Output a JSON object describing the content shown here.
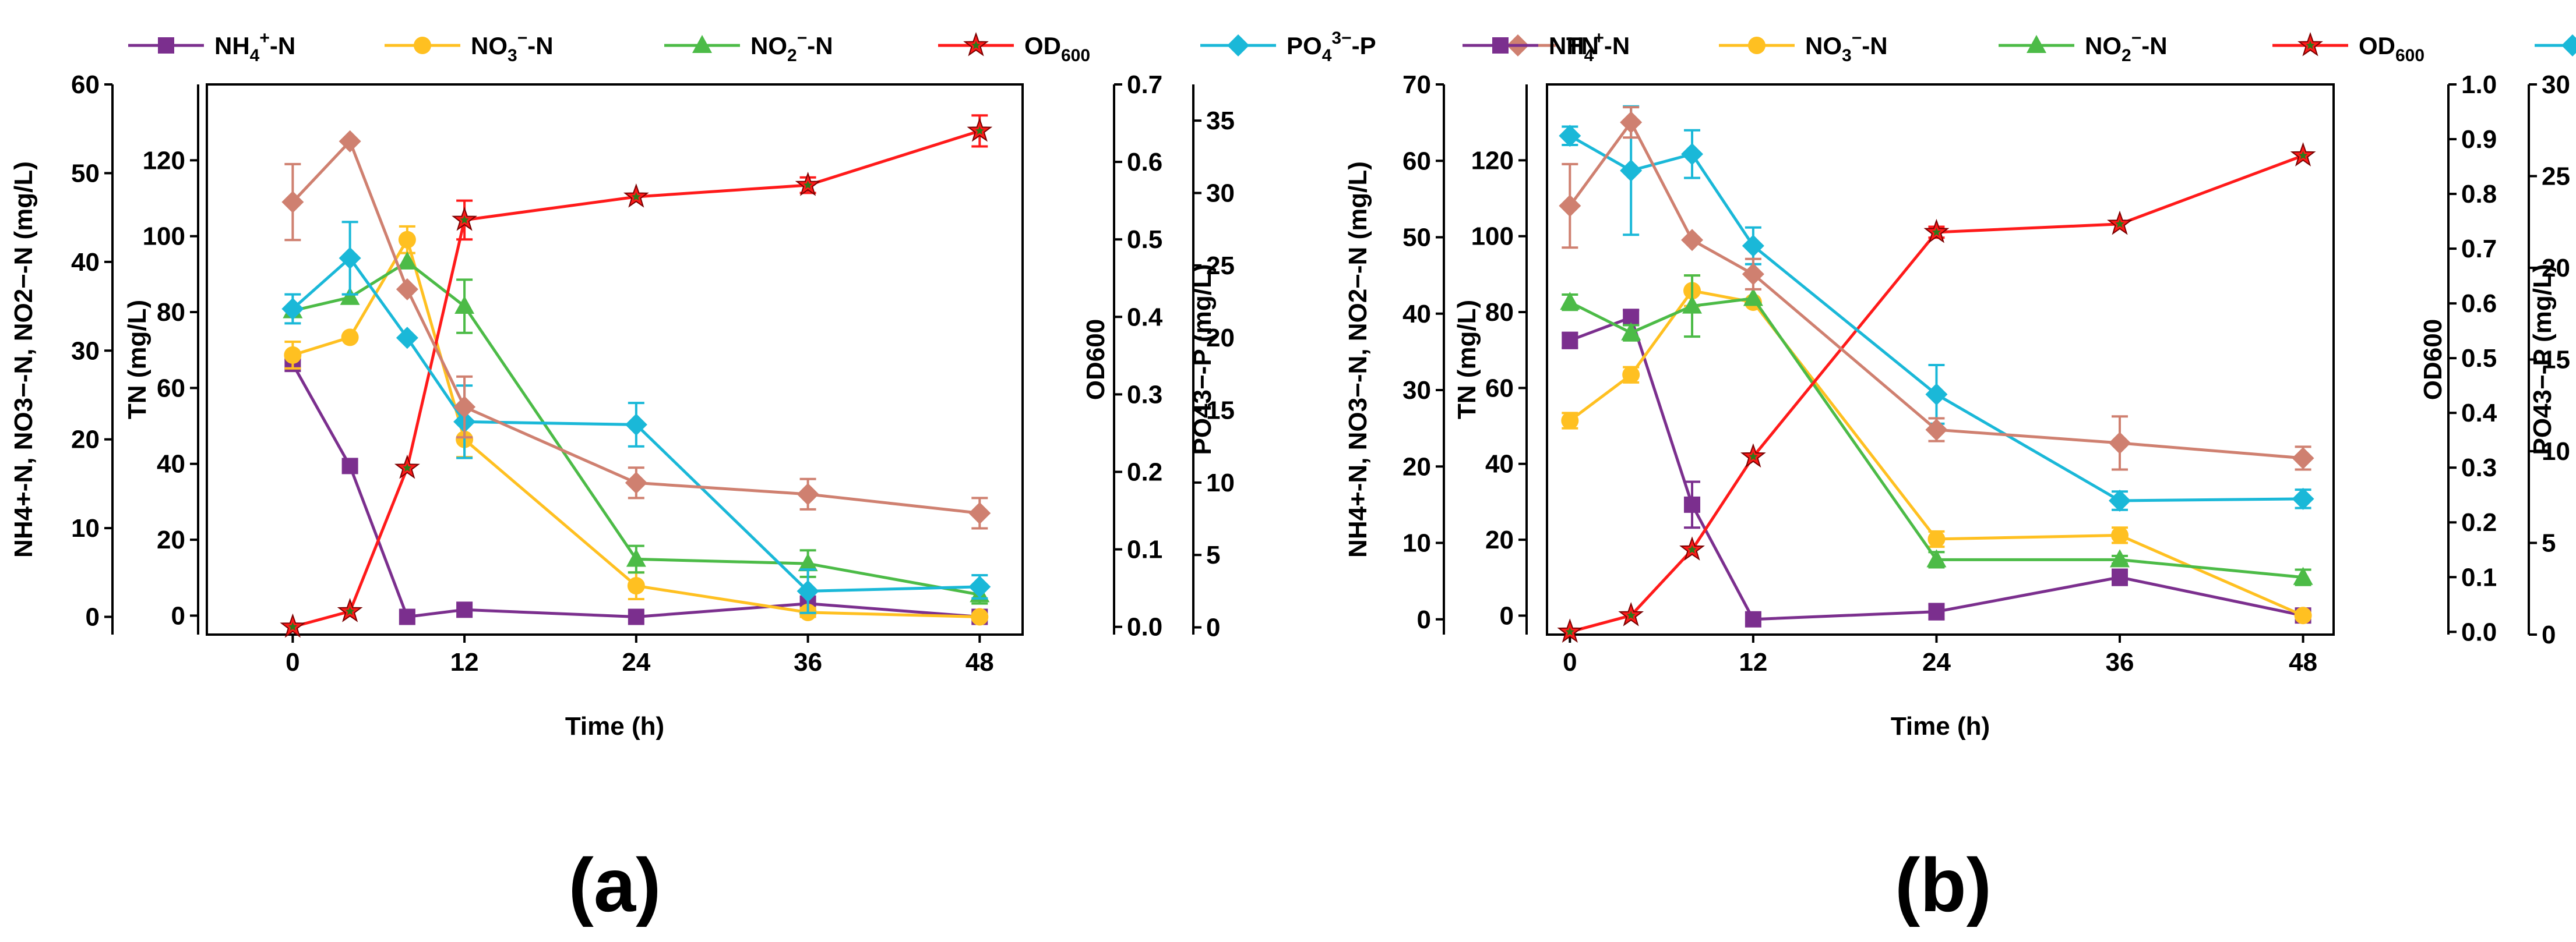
{
  "legend": [
    {
      "key": "nh4",
      "base": "NH",
      "sub": "4",
      "sup": "+",
      "rest": "-N",
      "color": "#7b2f8e",
      "marker": "square"
    },
    {
      "key": "no3",
      "base": "NO",
      "sub": "3",
      "sup": "−",
      "rest": "-N",
      "color": "#ffc021",
      "marker": "circle"
    },
    {
      "key": "no2",
      "base": "NO",
      "sub": "2",
      "sup": "−",
      "rest": "-N",
      "color": "#4cbb47",
      "marker": "triangle"
    },
    {
      "key": "od",
      "base": "OD",
      "sub": "600",
      "sup": "",
      "rest": "",
      "color": "#ff1a1a",
      "marker": "star"
    },
    {
      "key": "po4",
      "base": "PO",
      "sub": "4",
      "sup": "3−",
      "rest": "-P",
      "color": "#1ab8d8",
      "marker": "diamond"
    },
    {
      "key": "tn",
      "base": "TN",
      "sub": "",
      "sup": "",
      "rest": "",
      "color": "#cf8070",
      "marker": "diamond"
    }
  ],
  "chart_data": [
    {
      "panel_label": "(a)",
      "type": "line",
      "xlabel": "Time (h)",
      "x": [
        0,
        4,
        8,
        12,
        24,
        36,
        48
      ],
      "x_ticks": [
        0,
        12,
        24,
        36,
        48
      ],
      "xlim": [
        -6,
        51
      ],
      "axes": {
        "left": {
          "label": "NH4+-N, NO3−-N, NO2−-N (mg/L)",
          "lim": [
            -2,
            60
          ],
          "ticks": [
            0,
            10,
            20,
            30,
            40,
            50,
            60
          ]
        },
        "tn": {
          "label": "TN (mg/L)",
          "lim": [
            -5,
            140
          ],
          "ticks": [
            0,
            20,
            40,
            60,
            80,
            100,
            120
          ]
        },
        "od": {
          "label": "OD600",
          "lim": [
            -0.01,
            0.7
          ],
          "ticks": [
            "0.0",
            "0.1",
            "0.2",
            "0.3",
            "0.4",
            "0.5",
            "0.6",
            "0.7"
          ]
        },
        "po4": {
          "label": "PO43−-P (mg/L)",
          "lim": [
            -0.5,
            37.5
          ],
          "ticks": [
            0,
            5,
            10,
            15,
            20,
            25,
            30,
            35
          ]
        }
      },
      "series": [
        {
          "key": "nh4",
          "axis": "left",
          "values": [
            28.5,
            17,
            0,
            0.8,
            0,
            1.5,
            0
          ],
          "err": [
            0.5,
            0,
            0,
            0,
            0,
            0,
            0
          ]
        },
        {
          "key": "no3",
          "axis": "left",
          "values": [
            29.5,
            31.5,
            42.5,
            20,
            3.5,
            0.5,
            0
          ],
          "err": [
            1.5,
            0,
            1.5,
            2,
            1.5,
            0.5,
            0
          ]
        },
        {
          "key": "no2",
          "axis": "left",
          "values": [
            34.5,
            36,
            40,
            35,
            6.5,
            6,
            2.5
          ],
          "err": [
            0,
            0,
            0,
            3,
            1.5,
            1.5,
            1
          ]
        },
        {
          "key": "od",
          "axis": "od",
          "values": [
            0,
            0.02,
            0.205,
            0.525,
            0.555,
            0.57,
            0.64
          ],
          "err": [
            0,
            0,
            0,
            0.025,
            0,
            0.01,
            0.02
          ]
        },
        {
          "key": "po4",
          "axis": "po4",
          "values": [
            22,
            25.5,
            20,
            14.2,
            14,
            2.5,
            2.8
          ],
          "err": [
            1,
            2.5,
            0,
            2.5,
            1.5,
            1.5,
            0.8
          ]
        },
        {
          "key": "tn",
          "axis": "tn",
          "values": [
            109,
            125,
            86,
            55,
            35,
            32,
            27
          ],
          "err": [
            10,
            0,
            0,
            8,
            4,
            4,
            4
          ]
        }
      ]
    },
    {
      "panel_label": "(b)",
      "type": "line",
      "xlabel": "Time (h)",
      "x": [
        0,
        4,
        8,
        12,
        24,
        36,
        48
      ],
      "x_ticks": [
        0,
        12,
        24,
        36,
        48
      ],
      "xlim": [
        -1.5,
        50
      ],
      "axes": {
        "left": {
          "label": "NH4+-N, NO3−-N, NO2−-N (mg/L)",
          "lim": [
            -2,
            70
          ],
          "ticks": [
            0,
            10,
            20,
            30,
            40,
            50,
            60,
            70
          ]
        },
        "tn": {
          "label": "TN (mg/L)",
          "lim": [
            -5,
            140
          ],
          "ticks": [
            0,
            20,
            40,
            60,
            80,
            100,
            120
          ]
        },
        "od": {
          "label": "OD600",
          "lim": [
            -0.005,
            1.0
          ],
          "ticks": [
            "0.0",
            "0.1",
            "0.2",
            "0.3",
            "0.4",
            "0.5",
            "0.6",
            "0.7",
            "0.8",
            "0.9",
            "1.0"
          ]
        },
        "po4": {
          "label": "PO43−-P (mg/L)",
          "lim": [
            0,
            30
          ],
          "ticks": [
            0,
            5,
            10,
            15,
            20,
            25,
            30
          ]
        }
      },
      "series": [
        {
          "key": "nh4",
          "axis": "left",
          "values": [
            36.5,
            39.5,
            15,
            0,
            1,
            5.5,
            0.5
          ],
          "err": [
            1,
            1,
            3,
            0,
            1,
            1,
            0
          ]
        },
        {
          "key": "no3",
          "axis": "left",
          "values": [
            26,
            32,
            43,
            41.5,
            10.5,
            11,
            0.5
          ],
          "err": [
            1,
            1,
            2,
            0,
            1,
            1,
            0
          ]
        },
        {
          "key": "no2",
          "axis": "left",
          "values": [
            41.5,
            37.5,
            41,
            42,
            7.8,
            7.8,
            5.5
          ],
          "err": [
            1,
            1,
            4,
            0,
            1,
            0.5,
            1
          ]
        },
        {
          "key": "od",
          "axis": "od",
          "values": [
            0,
            0.03,
            0.15,
            0.32,
            0.73,
            0.745,
            0.87
          ],
          "err": [
            0,
            0,
            0,
            0,
            0.01,
            0,
            0
          ]
        },
        {
          "key": "po4",
          "axis": "po4",
          "values": [
            27.2,
            25.3,
            26.2,
            21.2,
            13.1,
            7.3,
            7.4
          ],
          "err": [
            0.5,
            3.5,
            1.3,
            1,
            1.6,
            0.5,
            0.5
          ]
        },
        {
          "key": "tn",
          "axis": "tn",
          "values": [
            108,
            130,
            99,
            90,
            49,
            45.5,
            41.5
          ],
          "err": [
            11,
            4,
            0,
            4,
            3,
            7,
            3
          ]
        }
      ]
    }
  ]
}
